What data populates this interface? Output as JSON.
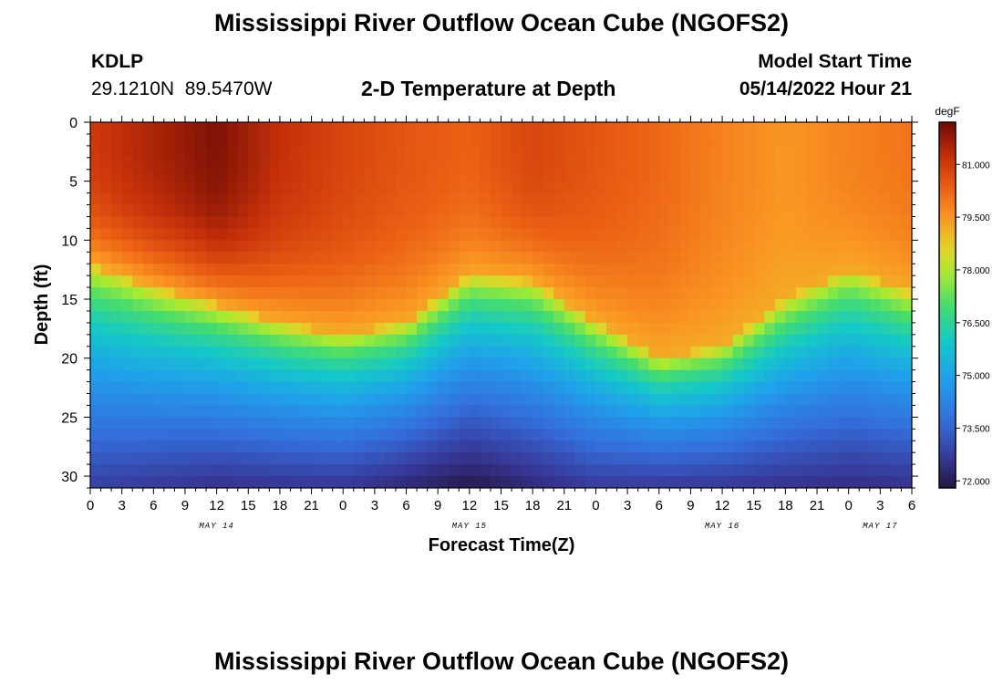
{
  "header": {
    "title": "Mississippi River Outflow Ocean Cube (NGOFS2)",
    "station_id": "KDLP",
    "station_coords": "29.1210N  89.5470W",
    "plot_subtitle": "2-D Temperature at Depth",
    "model_start_label": "Model Start Time",
    "model_start_value": "05/14/2022 Hour 21"
  },
  "footer": {
    "title": "Mississippi River Outflow Ocean Cube (NGOFS2)"
  },
  "chart_data": {
    "type": "heatmap",
    "title": "2-D Temperature at Depth",
    "xlabel": "Forecast Time(Z)",
    "ylabel": "Depth (ft)",
    "x_range_hours": [
      0,
      78
    ],
    "y_range_ft": [
      0,
      31
    ],
    "x_ticks": [
      {
        "h": 0,
        "label": "0"
      },
      {
        "h": 3,
        "label": "3"
      },
      {
        "h": 6,
        "label": "6"
      },
      {
        "h": 9,
        "label": "9"
      },
      {
        "h": 12,
        "label": "12"
      },
      {
        "h": 15,
        "label": "15"
      },
      {
        "h": 18,
        "label": "18"
      },
      {
        "h": 21,
        "label": "21"
      },
      {
        "h": 24,
        "label": "0"
      },
      {
        "h": 27,
        "label": "3"
      },
      {
        "h": 30,
        "label": "6"
      },
      {
        "h": 33,
        "label": "9"
      },
      {
        "h": 36,
        "label": "12"
      },
      {
        "h": 39,
        "label": "15"
      },
      {
        "h": 42,
        "label": "18"
      },
      {
        "h": 45,
        "label": "21"
      },
      {
        "h": 48,
        "label": "0"
      },
      {
        "h": 51,
        "label": "3"
      },
      {
        "h": 54,
        "label": "6"
      },
      {
        "h": 57,
        "label": "9"
      },
      {
        "h": 60,
        "label": "12"
      },
      {
        "h": 63,
        "label": "15"
      },
      {
        "h": 66,
        "label": "18"
      },
      {
        "h": 69,
        "label": "21"
      },
      {
        "h": 72,
        "label": "0"
      },
      {
        "h": 75,
        "label": "3"
      },
      {
        "h": 78,
        "label": "6"
      }
    ],
    "date_labels": [
      {
        "h": 12,
        "label": "MAY 14"
      },
      {
        "h": 36,
        "label": "MAY 15"
      },
      {
        "h": 60,
        "label": "MAY 16"
      },
      {
        "h": 75,
        "label": "MAY 17"
      }
    ],
    "y_ticks": [
      0,
      5,
      10,
      15,
      20,
      25,
      30
    ],
    "colorbar": {
      "units": "degF",
      "range": [
        71.8,
        82.2
      ],
      "ticks": [
        "81.000",
        "79.500",
        "78.000",
        "76.500",
        "75.000",
        "73.500",
        "72.000"
      ]
    },
    "thermocline_depth_ft": [
      {
        "h": 0,
        "d": 12.0
      },
      {
        "h": 6,
        "d": 14.0
      },
      {
        "h": 12,
        "d": 15.5
      },
      {
        "h": 18,
        "d": 17.0
      },
      {
        "h": 24,
        "d": 18.0
      },
      {
        "h": 30,
        "d": 17.0
      },
      {
        "h": 36,
        "d": 13.0
      },
      {
        "h": 42,
        "d": 13.5
      },
      {
        "h": 48,
        "d": 17.0
      },
      {
        "h": 54,
        "d": 20.0
      },
      {
        "h": 60,
        "d": 19.0
      },
      {
        "h": 66,
        "d": 15.0
      },
      {
        "h": 72,
        "d": 12.5
      },
      {
        "h": 78,
        "d": 14.5
      }
    ],
    "surface_temp_degF": [
      {
        "h": 0,
        "t": 81.0
      },
      {
        "h": 6,
        "t": 81.5
      },
      {
        "h": 12,
        "t": 82.0
      },
      {
        "h": 18,
        "t": 81.2
      },
      {
        "h": 24,
        "t": 80.8
      },
      {
        "h": 30,
        "t": 80.5
      },
      {
        "h": 36,
        "t": 80.3
      },
      {
        "h": 42,
        "t": 80.8
      },
      {
        "h": 48,
        "t": 80.5
      },
      {
        "h": 54,
        "t": 80.2
      },
      {
        "h": 60,
        "t": 79.8
      },
      {
        "h": 66,
        "t": 79.5
      },
      {
        "h": 72,
        "t": 79.8
      },
      {
        "h": 78,
        "t": 80.0
      }
    ],
    "bottom_temp_degF": [
      {
        "h": 0,
        "t": 72.8
      },
      {
        "h": 12,
        "t": 72.5
      },
      {
        "h": 24,
        "t": 72.6
      },
      {
        "h": 36,
        "t": 71.9
      },
      {
        "h": 48,
        "t": 72.7
      },
      {
        "h": 60,
        "t": 72.6
      },
      {
        "h": 72,
        "t": 72.4
      },
      {
        "h": 78,
        "t": 72.5
      }
    ]
  }
}
